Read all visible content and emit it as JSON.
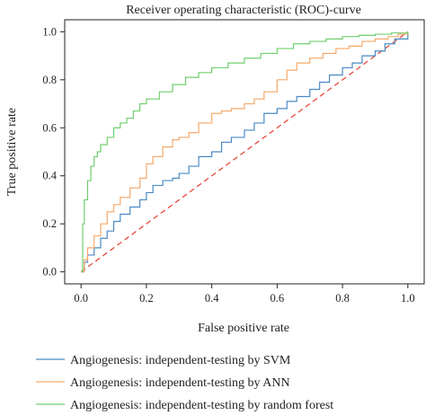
{
  "chart_data": {
    "type": "line",
    "title": "Receiver operating characteristic (ROC)-curve",
    "xlabel": "False positive rate",
    "ylabel": "True positive rate",
    "xlim": [
      -0.05,
      1.05
    ],
    "ylim": [
      -0.05,
      1.05
    ],
    "xticks": [
      0.0,
      0.2,
      0.4,
      0.6,
      0.8,
      1.0
    ],
    "yticks": [
      0.0,
      0.2,
      0.4,
      0.6,
      0.8,
      1.0
    ],
    "xtick_labels": [
      "0.0",
      "0.2",
      "0.4",
      "0.6",
      "0.8",
      "1.0"
    ],
    "ytick_labels": [
      "0.0",
      "0.2",
      "0.4",
      "0.6",
      "0.8",
      "1.0"
    ],
    "grid": false,
    "legend_position": "below-plot",
    "reference_line": {
      "x": [
        0,
        1
      ],
      "y": [
        0,
        1
      ],
      "color": "#e8493a",
      "style": "dashed"
    },
    "series": [
      {
        "name": "Angiogenesis: independent-testing by SVM",
        "color": "#4a8ac4",
        "x": [
          0.0,
          0.01,
          0.02,
          0.04,
          0.06,
          0.08,
          0.1,
          0.12,
          0.15,
          0.18,
          0.2,
          0.22,
          0.25,
          0.28,
          0.3,
          0.33,
          0.36,
          0.4,
          0.43,
          0.46,
          0.5,
          0.53,
          0.56,
          0.6,
          0.63,
          0.66,
          0.7,
          0.73,
          0.76,
          0.8,
          0.83,
          0.86,
          0.9,
          0.93,
          0.96,
          1.0
        ],
        "y": [
          0.0,
          0.04,
          0.07,
          0.1,
          0.14,
          0.17,
          0.21,
          0.24,
          0.27,
          0.3,
          0.33,
          0.36,
          0.38,
          0.39,
          0.41,
          0.44,
          0.48,
          0.5,
          0.54,
          0.56,
          0.59,
          0.62,
          0.66,
          0.68,
          0.71,
          0.73,
          0.76,
          0.79,
          0.82,
          0.85,
          0.87,
          0.9,
          0.92,
          0.95,
          0.97,
          1.0
        ]
      },
      {
        "name": "Angiogenesis: independent-testing by ANN",
        "color": "#f5a96b",
        "x": [
          0.0,
          0.01,
          0.02,
          0.04,
          0.06,
          0.08,
          0.1,
          0.12,
          0.15,
          0.18,
          0.2,
          0.22,
          0.25,
          0.28,
          0.3,
          0.33,
          0.36,
          0.4,
          0.43,
          0.46,
          0.5,
          0.53,
          0.56,
          0.6,
          0.63,
          0.66,
          0.7,
          0.74,
          0.78,
          0.82,
          0.86,
          0.9,
          0.94,
          0.97,
          1.0
        ],
        "y": [
          0.0,
          0.05,
          0.1,
          0.15,
          0.2,
          0.25,
          0.28,
          0.31,
          0.35,
          0.39,
          0.45,
          0.48,
          0.52,
          0.55,
          0.56,
          0.58,
          0.62,
          0.66,
          0.67,
          0.68,
          0.7,
          0.72,
          0.75,
          0.8,
          0.84,
          0.87,
          0.89,
          0.91,
          0.93,
          0.94,
          0.96,
          0.97,
          0.98,
          0.99,
          1.0
        ]
      },
      {
        "name": "Angiogenesis: independent-testing by random forest",
        "color": "#6fcf6e",
        "x": [
          0.0,
          0.005,
          0.01,
          0.02,
          0.03,
          0.04,
          0.05,
          0.06,
          0.08,
          0.1,
          0.12,
          0.14,
          0.16,
          0.18,
          0.2,
          0.24,
          0.28,
          0.32,
          0.36,
          0.4,
          0.45,
          0.5,
          0.55,
          0.6,
          0.65,
          0.7,
          0.75,
          0.8,
          0.85,
          0.9,
          0.95,
          1.0
        ],
        "y": [
          0.0,
          0.2,
          0.3,
          0.38,
          0.44,
          0.48,
          0.5,
          0.53,
          0.56,
          0.6,
          0.62,
          0.64,
          0.67,
          0.7,
          0.72,
          0.75,
          0.78,
          0.81,
          0.83,
          0.85,
          0.87,
          0.89,
          0.91,
          0.93,
          0.95,
          0.96,
          0.97,
          0.98,
          0.985,
          0.99,
          0.995,
          1.0
        ]
      }
    ]
  }
}
